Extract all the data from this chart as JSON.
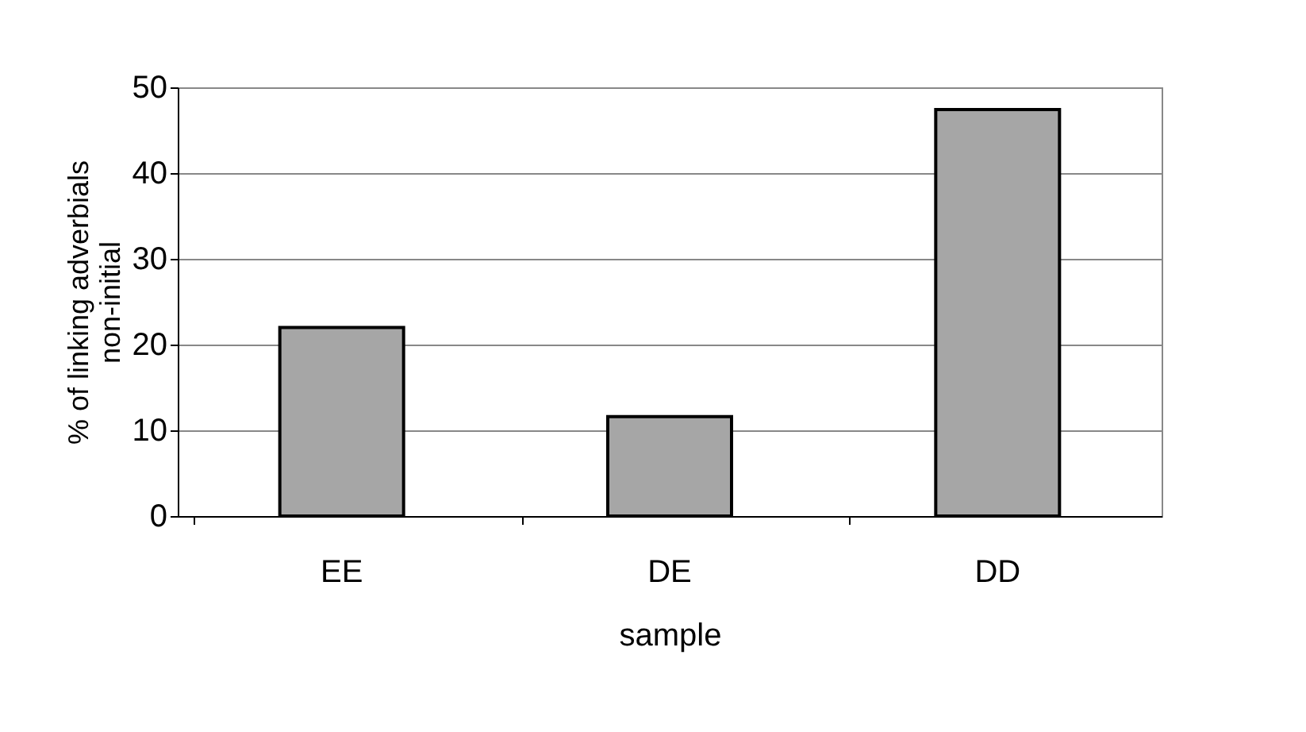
{
  "chart_data": {
    "type": "bar",
    "xlabel": "sample",
    "ylabel": "% of linking adverbials\nnon-initial",
    "categories": [
      "EE",
      "DE",
      "DD"
    ],
    "values": [
      22.0,
      11.6,
      47.4
    ],
    "color": "#a6a6a6",
    "ylim": [
      0,
      50
    ],
    "yticks": [
      0,
      10,
      20,
      30,
      40,
      50
    ],
    "grid": "y"
  }
}
